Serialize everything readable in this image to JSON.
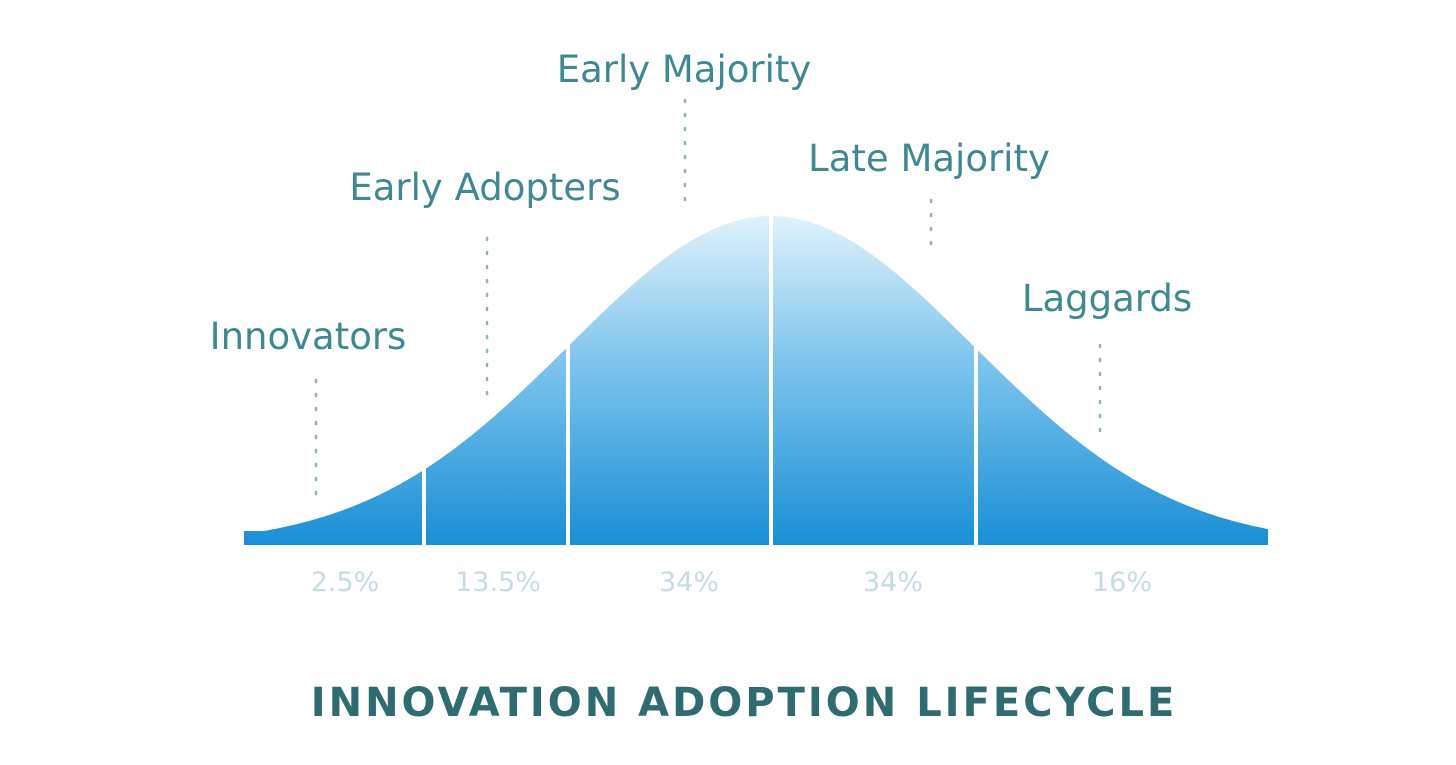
{
  "title": "INNOVATION ADOPTION LIFECYCLE",
  "segments": [
    {
      "name": "Innovators",
      "percent_label": "2.5%",
      "share": 2.5
    },
    {
      "name": "Early Adopters",
      "percent_label": "13.5%",
      "share": 13.5
    },
    {
      "name": "Early Majority",
      "percent_label": "34%",
      "share": 34
    },
    {
      "name": "Late Majority",
      "percent_label": "34%",
      "share": 34
    },
    {
      "name": "Laggards",
      "percent_label": "16%",
      "share": 16
    }
  ],
  "colors": {
    "curve_top": "#dff2fb",
    "curve_bottom": "#1a8fd6",
    "label_text": "#3f8a92",
    "percent_text": "#c3dde2",
    "title_text": "#2f6c72",
    "leader_line": "#8ab4bc"
  }
}
